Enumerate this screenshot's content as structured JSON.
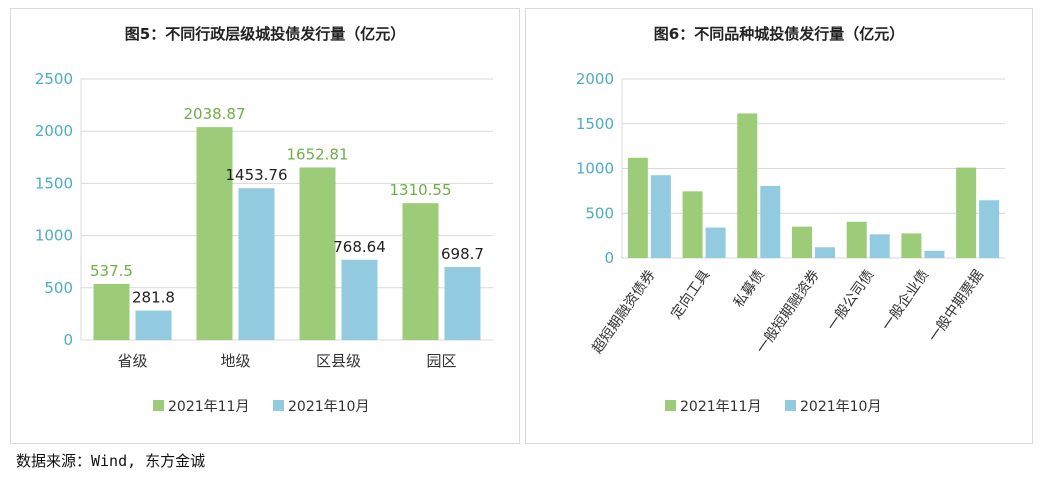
{
  "source_note": "数据来源：Wind, 东方金诚",
  "colors": {
    "nov": "#9ccc78",
    "oct": "#92cbe0",
    "axis": "#4bacc6",
    "grid": "#d9d9d9",
    "label_nov": "#70ad47",
    "label_oct": "#222222"
  },
  "chart_data": [
    {
      "type": "bar",
      "title": "图5：不同行政层级城投债发行量（亿元）",
      "categories": [
        "省级",
        "地级",
        "区县级",
        "园区"
      ],
      "series": [
        {
          "name": "2021年11月",
          "values": [
            537.5,
            2038.87,
            1652.81,
            1310.55
          ]
        },
        {
          "name": "2021年10月",
          "values": [
            281.8,
            1453.76,
            768.64,
            698.7
          ]
        }
      ],
      "value_labels": [
        [
          "537.5",
          "2038.87",
          "1652.81",
          "1310.55"
        ],
        [
          "281.8",
          "1453.76",
          "768.64",
          "698.7"
        ]
      ],
      "ylim": [
        0,
        2500
      ],
      "yticks": [
        "0",
        "500",
        "1000",
        "1500",
        "2000",
        "2500"
      ],
      "grid": true,
      "legend": "bottom"
    },
    {
      "type": "bar",
      "title": "图6：不同品种城投债发行量（亿元）",
      "categories": [
        "超短期融资债券",
        "定向工具",
        "私募债",
        "一般短期融资券",
        "一般公司债",
        "一般企业债",
        "一般中期票据"
      ],
      "series": [
        {
          "name": "2021年11月",
          "values": [
            1120,
            745,
            1615,
            350,
            405,
            275,
            1010
          ]
        },
        {
          "name": "2021年10月",
          "values": [
            925,
            340,
            805,
            120,
            265,
            80,
            645
          ]
        }
      ],
      "ylim": [
        0,
        2000
      ],
      "yticks": [
        "0",
        "500",
        "1000",
        "1500",
        "2000"
      ],
      "grid": true,
      "legend": "bottom"
    }
  ]
}
